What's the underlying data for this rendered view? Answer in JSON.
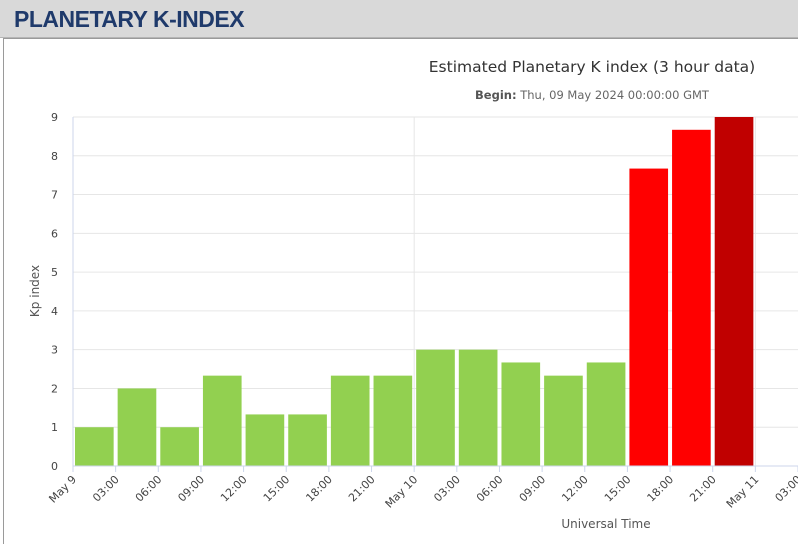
{
  "header": {
    "title": "PLANETARY K-INDEX"
  },
  "chart_data": {
    "type": "bar",
    "title": "Estimated Planetary K index (3 hour data)",
    "subtitle_label": "Begin:",
    "subtitle_value": "Thu, 09 May 2024 00:00:00 GMT",
    "ylabel": "Kp index",
    "xlabel": "Universal Time",
    "ylim": [
      0,
      9
    ],
    "y_ticks": [
      "0",
      "1",
      "2",
      "3",
      "4",
      "5",
      "6",
      "7",
      "8",
      "9"
    ],
    "x_range_hours": [
      0,
      51
    ],
    "x_ticks": [
      {
        "hour": 0,
        "label": "May 9"
      },
      {
        "hour": 3,
        "label": "03:00"
      },
      {
        "hour": 6,
        "label": "06:00"
      },
      {
        "hour": 9,
        "label": "09:00"
      },
      {
        "hour": 12,
        "label": "12:00"
      },
      {
        "hour": 15,
        "label": "15:00"
      },
      {
        "hour": 18,
        "label": "18:00"
      },
      {
        "hour": 21,
        "label": "21:00"
      },
      {
        "hour": 24,
        "label": "May 10"
      },
      {
        "hour": 27,
        "label": "03:00"
      },
      {
        "hour": 30,
        "label": "06:00"
      },
      {
        "hour": 33,
        "label": "09:00"
      },
      {
        "hour": 36,
        "label": "12:00"
      },
      {
        "hour": 39,
        "label": "15:00"
      },
      {
        "hour": 42,
        "label": "18:00"
      },
      {
        "hour": 45,
        "label": "21:00"
      },
      {
        "hour": 48,
        "label": "May 11"
      },
      {
        "hour": 51,
        "label": "03:00"
      }
    ],
    "grid": true,
    "bars": [
      {
        "start": "May 9 00:00",
        "value": 1.0,
        "color": "#92d050"
      },
      {
        "start": "May 9 03:00",
        "value": 2.0,
        "color": "#92d050"
      },
      {
        "start": "May 9 06:00",
        "value": 1.0,
        "color": "#92d050"
      },
      {
        "start": "May 9 09:00",
        "value": 2.33,
        "color": "#92d050"
      },
      {
        "start": "May 9 12:00",
        "value": 1.33,
        "color": "#92d050"
      },
      {
        "start": "May 9 15:00",
        "value": 1.33,
        "color": "#92d050"
      },
      {
        "start": "May 9 18:00",
        "value": 2.33,
        "color": "#92d050"
      },
      {
        "start": "May 9 21:00",
        "value": 2.33,
        "color": "#92d050"
      },
      {
        "start": "May 10 00:00",
        "value": 3.0,
        "color": "#92d050"
      },
      {
        "start": "May 10 03:00",
        "value": 3.0,
        "color": "#92d050"
      },
      {
        "start": "May 10 06:00",
        "value": 2.67,
        "color": "#92d050"
      },
      {
        "start": "May 10 09:00",
        "value": 2.33,
        "color": "#92d050"
      },
      {
        "start": "May 10 12:00",
        "value": 2.67,
        "color": "#92d050"
      },
      {
        "start": "May 10 15:00",
        "value": 7.67,
        "color": "#ff0000"
      },
      {
        "start": "May 10 18:00",
        "value": 8.67,
        "color": "#ff0000"
      },
      {
        "start": "May 10 21:00",
        "value": 9.0,
        "color": "#c00000"
      }
    ]
  }
}
